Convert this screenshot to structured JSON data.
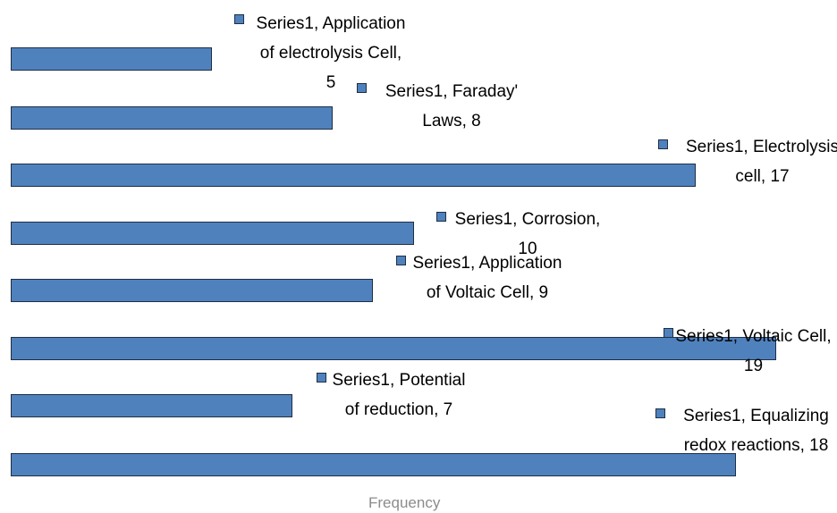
{
  "chart_data": {
    "type": "barh",
    "x_label": "Frequency",
    "categories": [
      "Application of electrolysis Cell",
      "Faraday' Laws",
      "Electrolysis cell",
      "Corrosion",
      "Application of Voltaic Cell",
      "Voltaic Cell",
      "Potential of reduction",
      "Equalizing redox reactions"
    ],
    "series": [
      {
        "name": "Series1",
        "color": "#4f81bd",
        "values": [
          5,
          8,
          17,
          10,
          9,
          19,
          7,
          18
        ]
      }
    ]
  }
}
